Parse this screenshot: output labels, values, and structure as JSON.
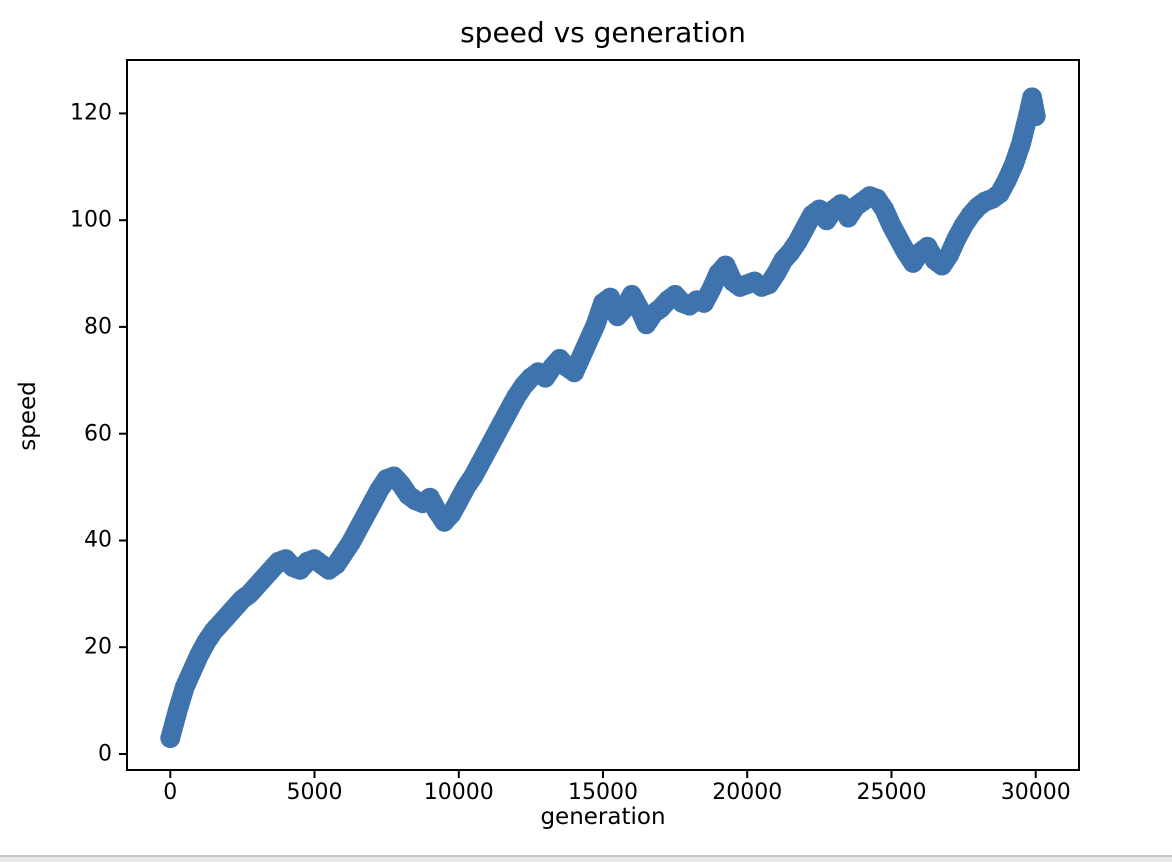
{
  "page": {
    "background_color": "#ffffff",
    "bottom_strip_color": "#e9e9e9"
  },
  "chart_data": {
    "type": "scatter",
    "title": "speed vs generation",
    "xlabel": "generation",
    "ylabel": "speed",
    "legend": null,
    "grid": false,
    "marker_color": "#3e73ad",
    "marker_radius_px": 10,
    "axis_color": "#000000",
    "xlim": [
      -1500,
      31500
    ],
    "ylim": [
      -3,
      130
    ],
    "xticks": [
      0,
      5000,
      10000,
      15000,
      20000,
      25000,
      30000
    ],
    "yticks": [
      0,
      20,
      40,
      60,
      80,
      100,
      120
    ],
    "x": [
      0,
      250,
      500,
      750,
      1000,
      1250,
      1500,
      1750,
      2000,
      2250,
      2500,
      2750,
      3000,
      3250,
      3500,
      3750,
      4000,
      4250,
      4500,
      4750,
      5000,
      5250,
      5500,
      5750,
      6000,
      6250,
      6500,
      6750,
      7000,
      7250,
      7500,
      7750,
      8000,
      8250,
      8500,
      8750,
      9000,
      9250,
      9500,
      9750,
      10000,
      10250,
      10500,
      10750,
      11000,
      11250,
      11500,
      11750,
      12000,
      12250,
      12500,
      12750,
      13000,
      13250,
      13500,
      13750,
      14000,
      14250,
      14500,
      14750,
      15000,
      15250,
      15500,
      15750,
      16000,
      16250,
      16500,
      16750,
      17000,
      17250,
      17500,
      17750,
      18000,
      18250,
      18500,
      18750,
      19000,
      19250,
      19500,
      19750,
      20000,
      20250,
      20500,
      20750,
      21000,
      21250,
      21500,
      21750,
      22000,
      22250,
      22500,
      22750,
      23000,
      23250,
      23500,
      23750,
      24000,
      24250,
      24500,
      24750,
      25000,
      25250,
      25500,
      25750,
      26000,
      26250,
      26500,
      26750,
      27000,
      27250,
      27500,
      27750,
      28000,
      28250,
      28500,
      28750,
      29000,
      29250,
      29500,
      29750,
      29875,
      30000
    ],
    "y": [
      3,
      8,
      12.5,
      15.5,
      18.5,
      21,
      23,
      24.5,
      26,
      27.5,
      29,
      30,
      31.5,
      33,
      34.5,
      36,
      36.5,
      35,
      34.5,
      36,
      36.5,
      35.5,
      34.5,
      35.5,
      37.5,
      39.5,
      42,
      44.5,
      47,
      49.5,
      51.5,
      52,
      50.5,
      48.5,
      47.5,
      47,
      48,
      45.5,
      43.5,
      45,
      47.5,
      50,
      52,
      54.5,
      57,
      59.5,
      62,
      64.5,
      67,
      69,
      70.5,
      71.5,
      70.5,
      72.5,
      74,
      72.5,
      71.5,
      74.5,
      77.5,
      80.5,
      84.5,
      85.5,
      82,
      83.5,
      86,
      83.5,
      80.5,
      82.5,
      83.5,
      85,
      86,
      84.5,
      84,
      85,
      84.5,
      87,
      90,
      91.5,
      88.5,
      87.5,
      88,
      88.5,
      87.5,
      88,
      90,
      92.5,
      94,
      96,
      98.5,
      101,
      102,
      100,
      102,
      103,
      100.5,
      102.5,
      103.5,
      104.5,
      104,
      102,
      99,
      96.5,
      94,
      92,
      94,
      95,
      92.5,
      91.5,
      93.5,
      96.5,
      99,
      101,
      102.5,
      103.5,
      104,
      105,
      107.5,
      110.5,
      114.5,
      120,
      123,
      119.5
    ]
  }
}
